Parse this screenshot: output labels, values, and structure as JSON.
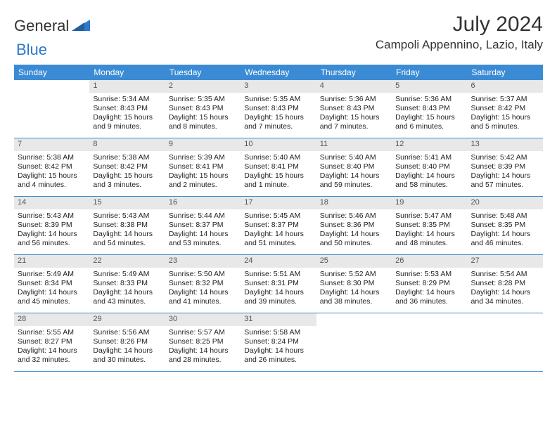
{
  "logo": {
    "part1": "General",
    "part2": "Blue"
  },
  "title": "July 2024",
  "location": "Campoli Appennino, Lazio, Italy",
  "weekdays": [
    "Sunday",
    "Monday",
    "Tuesday",
    "Wednesday",
    "Thursday",
    "Friday",
    "Saturday"
  ],
  "colors": {
    "header_bg": "#3b8bd4",
    "header_text": "#ffffff",
    "daynum_bg": "#e8e8e8",
    "daynum_text": "#555555",
    "body_text": "#222222",
    "logo_gray": "#333333",
    "logo_blue": "#2c7ac9",
    "row_border": "#3b8bd4"
  },
  "weeks": [
    [
      null,
      {
        "n": "1",
        "sr": "Sunrise: 5:34 AM",
        "ss": "Sunset: 8:43 PM",
        "dl": "Daylight: 15 hours and 9 minutes."
      },
      {
        "n": "2",
        "sr": "Sunrise: 5:35 AM",
        "ss": "Sunset: 8:43 PM",
        "dl": "Daylight: 15 hours and 8 minutes."
      },
      {
        "n": "3",
        "sr": "Sunrise: 5:35 AM",
        "ss": "Sunset: 8:43 PM",
        "dl": "Daylight: 15 hours and 7 minutes."
      },
      {
        "n": "4",
        "sr": "Sunrise: 5:36 AM",
        "ss": "Sunset: 8:43 PM",
        "dl": "Daylight: 15 hours and 7 minutes."
      },
      {
        "n": "5",
        "sr": "Sunrise: 5:36 AM",
        "ss": "Sunset: 8:43 PM",
        "dl": "Daylight: 15 hours and 6 minutes."
      },
      {
        "n": "6",
        "sr": "Sunrise: 5:37 AM",
        "ss": "Sunset: 8:42 PM",
        "dl": "Daylight: 15 hours and 5 minutes."
      }
    ],
    [
      {
        "n": "7",
        "sr": "Sunrise: 5:38 AM",
        "ss": "Sunset: 8:42 PM",
        "dl": "Daylight: 15 hours and 4 minutes."
      },
      {
        "n": "8",
        "sr": "Sunrise: 5:38 AM",
        "ss": "Sunset: 8:42 PM",
        "dl": "Daylight: 15 hours and 3 minutes."
      },
      {
        "n": "9",
        "sr": "Sunrise: 5:39 AM",
        "ss": "Sunset: 8:41 PM",
        "dl": "Daylight: 15 hours and 2 minutes."
      },
      {
        "n": "10",
        "sr": "Sunrise: 5:40 AM",
        "ss": "Sunset: 8:41 PM",
        "dl": "Daylight: 15 hours and 1 minute."
      },
      {
        "n": "11",
        "sr": "Sunrise: 5:40 AM",
        "ss": "Sunset: 8:40 PM",
        "dl": "Daylight: 14 hours and 59 minutes."
      },
      {
        "n": "12",
        "sr": "Sunrise: 5:41 AM",
        "ss": "Sunset: 8:40 PM",
        "dl": "Daylight: 14 hours and 58 minutes."
      },
      {
        "n": "13",
        "sr": "Sunrise: 5:42 AM",
        "ss": "Sunset: 8:39 PM",
        "dl": "Daylight: 14 hours and 57 minutes."
      }
    ],
    [
      {
        "n": "14",
        "sr": "Sunrise: 5:43 AM",
        "ss": "Sunset: 8:39 PM",
        "dl": "Daylight: 14 hours and 56 minutes."
      },
      {
        "n": "15",
        "sr": "Sunrise: 5:43 AM",
        "ss": "Sunset: 8:38 PM",
        "dl": "Daylight: 14 hours and 54 minutes."
      },
      {
        "n": "16",
        "sr": "Sunrise: 5:44 AM",
        "ss": "Sunset: 8:37 PM",
        "dl": "Daylight: 14 hours and 53 minutes."
      },
      {
        "n": "17",
        "sr": "Sunrise: 5:45 AM",
        "ss": "Sunset: 8:37 PM",
        "dl": "Daylight: 14 hours and 51 minutes."
      },
      {
        "n": "18",
        "sr": "Sunrise: 5:46 AM",
        "ss": "Sunset: 8:36 PM",
        "dl": "Daylight: 14 hours and 50 minutes."
      },
      {
        "n": "19",
        "sr": "Sunrise: 5:47 AM",
        "ss": "Sunset: 8:35 PM",
        "dl": "Daylight: 14 hours and 48 minutes."
      },
      {
        "n": "20",
        "sr": "Sunrise: 5:48 AM",
        "ss": "Sunset: 8:35 PM",
        "dl": "Daylight: 14 hours and 46 minutes."
      }
    ],
    [
      {
        "n": "21",
        "sr": "Sunrise: 5:49 AM",
        "ss": "Sunset: 8:34 PM",
        "dl": "Daylight: 14 hours and 45 minutes."
      },
      {
        "n": "22",
        "sr": "Sunrise: 5:49 AM",
        "ss": "Sunset: 8:33 PM",
        "dl": "Daylight: 14 hours and 43 minutes."
      },
      {
        "n": "23",
        "sr": "Sunrise: 5:50 AM",
        "ss": "Sunset: 8:32 PM",
        "dl": "Daylight: 14 hours and 41 minutes."
      },
      {
        "n": "24",
        "sr": "Sunrise: 5:51 AM",
        "ss": "Sunset: 8:31 PM",
        "dl": "Daylight: 14 hours and 39 minutes."
      },
      {
        "n": "25",
        "sr": "Sunrise: 5:52 AM",
        "ss": "Sunset: 8:30 PM",
        "dl": "Daylight: 14 hours and 38 minutes."
      },
      {
        "n": "26",
        "sr": "Sunrise: 5:53 AM",
        "ss": "Sunset: 8:29 PM",
        "dl": "Daylight: 14 hours and 36 minutes."
      },
      {
        "n": "27",
        "sr": "Sunrise: 5:54 AM",
        "ss": "Sunset: 8:28 PM",
        "dl": "Daylight: 14 hours and 34 minutes."
      }
    ],
    [
      {
        "n": "28",
        "sr": "Sunrise: 5:55 AM",
        "ss": "Sunset: 8:27 PM",
        "dl": "Daylight: 14 hours and 32 minutes."
      },
      {
        "n": "29",
        "sr": "Sunrise: 5:56 AM",
        "ss": "Sunset: 8:26 PM",
        "dl": "Daylight: 14 hours and 30 minutes."
      },
      {
        "n": "30",
        "sr": "Sunrise: 5:57 AM",
        "ss": "Sunset: 8:25 PM",
        "dl": "Daylight: 14 hours and 28 minutes."
      },
      {
        "n": "31",
        "sr": "Sunrise: 5:58 AM",
        "ss": "Sunset: 8:24 PM",
        "dl": "Daylight: 14 hours and 26 minutes."
      },
      null,
      null,
      null
    ]
  ]
}
